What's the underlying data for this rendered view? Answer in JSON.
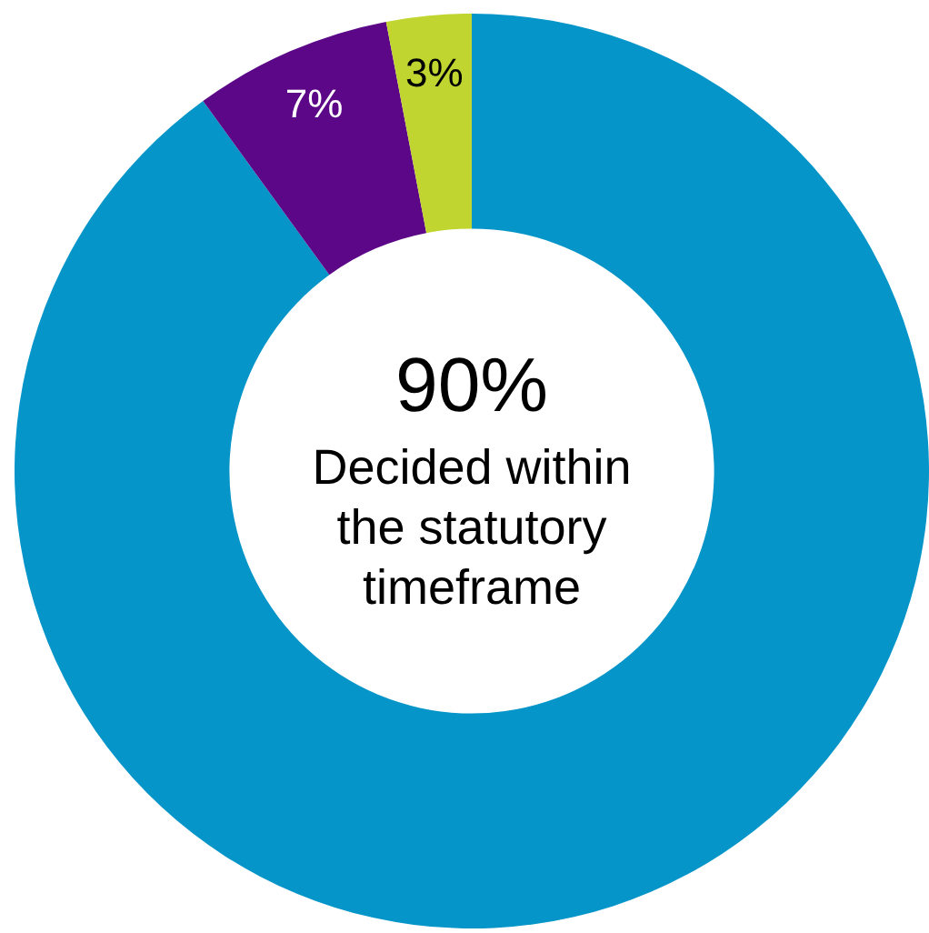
{
  "chart_data": {
    "type": "donut",
    "categories": [
      "Decided within the statutory timeframe",
      null,
      null
    ],
    "values": [
      90,
      7,
      3
    ],
    "colors": [
      "#0595c9",
      "#5c0787",
      "#c1d530"
    ],
    "value_labels": [
      "90%",
      "7%",
      "3%"
    ]
  }
}
